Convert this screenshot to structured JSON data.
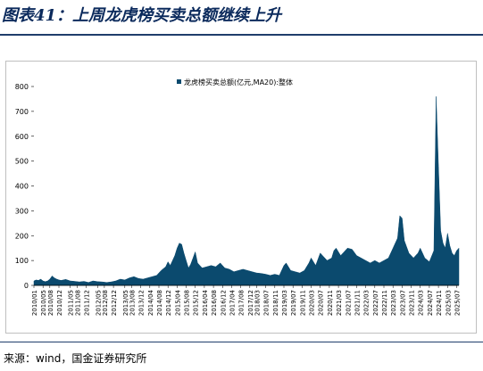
{
  "title": "图表41：上周龙虎榜买卖总额继续上升",
  "source": "来源：wind，国金证券研究所",
  "chart_data": {
    "type": "area",
    "legend": "龙虎榜买卖总额(亿元,MA20):整体",
    "legend_position": "top-center",
    "color": "#0b4a6e",
    "ylim": [
      0,
      800
    ],
    "yticks": [
      0,
      100,
      200,
      300,
      400,
      500,
      600,
      700,
      800
    ],
    "xticks": [
      "2010/01",
      "2010/05",
      "2010/08",
      "2010/12",
      "2011/05",
      "2011/08",
      "2011/12",
      "2012/05",
      "2012/08",
      "2012/12",
      "2013/05",
      "2013/08",
      "2013/12",
      "2014/04",
      "2014/08",
      "2014/12",
      "2015/04",
      "2015/08",
      "2015/12",
      "2016/04",
      "2016/08",
      "2016/12",
      "2017/04",
      "2017/08",
      "2017/12",
      "2018/03",
      "2018/07",
      "2018/11",
      "2019/03",
      "2019/07",
      "2019/11",
      "2020/03",
      "2020/07",
      "2020/11",
      "2021/03",
      "2021/07",
      "2021/11",
      "2022/03",
      "2022/07",
      "2022/11",
      "2023/03",
      "2023/07",
      "2023/11",
      "2024/03",
      "2024/07",
      "2024/11",
      "2025/03",
      "2025/07"
    ],
    "x_start": "2010/01",
    "x_end": "2025/08",
    "points": [
      [
        "2010/01",
        18
      ],
      [
        "2010/02",
        22
      ],
      [
        "2010/03",
        20
      ],
      [
        "2010/04",
        25
      ],
      [
        "2010/05",
        18
      ],
      [
        "2010/06",
        15
      ],
      [
        "2010/07",
        18
      ],
      [
        "2010/08",
        25
      ],
      [
        "2010/09",
        38
      ],
      [
        "2010/10",
        30
      ],
      [
        "2010/11",
        25
      ],
      [
        "2010/12",
        22
      ],
      [
        "2011/01",
        20
      ],
      [
        "2011/03",
        24
      ],
      [
        "2011/05",
        18
      ],
      [
        "2011/07",
        16
      ],
      [
        "2011/09",
        14
      ],
      [
        "2011/11",
        16
      ],
      [
        "2012/01",
        12
      ],
      [
        "2012/03",
        18
      ],
      [
        "2012/05",
        15
      ],
      [
        "2012/07",
        14
      ],
      [
        "2012/09",
        12
      ],
      [
        "2012/11",
        14
      ],
      [
        "2013/01",
        18
      ],
      [
        "2013/03",
        25
      ],
      [
        "2013/05",
        22
      ],
      [
        "2013/07",
        30
      ],
      [
        "2013/09",
        35
      ],
      [
        "2013/11",
        28
      ],
      [
        "2014/01",
        25
      ],
      [
        "2014/03",
        30
      ],
      [
        "2014/05",
        35
      ],
      [
        "2014/07",
        40
      ],
      [
        "2014/09",
        60
      ],
      [
        "2014/11",
        75
      ],
      [
        "2014/12",
        95
      ],
      [
        "2015/01",
        80
      ],
      [
        "2015/03",
        120
      ],
      [
        "2015/04",
        150
      ],
      [
        "2015/05",
        170
      ],
      [
        "2015/06",
        165
      ],
      [
        "2015/07",
        130
      ],
      [
        "2015/08",
        100
      ],
      [
        "2015/09",
        70
      ],
      [
        "2015/10",
        85
      ],
      [
        "2015/11",
        110
      ],
      [
        "2015/12",
        135
      ],
      [
        "2016/01",
        90
      ],
      [
        "2016/03",
        70
      ],
      [
        "2016/05",
        75
      ],
      [
        "2016/07",
        80
      ],
      [
        "2016/09",
        75
      ],
      [
        "2016/11",
        90
      ],
      [
        "2017/01",
        70
      ],
      [
        "2017/03",
        65
      ],
      [
        "2017/05",
        55
      ],
      [
        "2017/07",
        60
      ],
      [
        "2017/09",
        65
      ],
      [
        "2017/11",
        60
      ],
      [
        "2018/01",
        55
      ],
      [
        "2018/03",
        50
      ],
      [
        "2018/05",
        48
      ],
      [
        "2018/07",
        45
      ],
      [
        "2018/09",
        40
      ],
      [
        "2018/11",
        45
      ],
      [
        "2019/01",
        40
      ],
      [
        "2019/03",
        80
      ],
      [
        "2019/04",
        90
      ],
      [
        "2019/06",
        60
      ],
      [
        "2019/08",
        55
      ],
      [
        "2019/10",
        50
      ],
      [
        "2019/12",
        60
      ],
      [
        "2020/02",
        90
      ],
      [
        "2020/03",
        110
      ],
      [
        "2020/05",
        80
      ],
      [
        "2020/07",
        130
      ],
      [
        "2020/08",
        120
      ],
      [
        "2020/10",
        100
      ],
      [
        "2020/12",
        110
      ],
      [
        "2021/01",
        140
      ],
      [
        "2021/02",
        150
      ],
      [
        "2021/04",
        120
      ],
      [
        "2021/06",
        140
      ],
      [
        "2021/07",
        150
      ],
      [
        "2021/09",
        145
      ],
      [
        "2021/11",
        120
      ],
      [
        "2022/01",
        110
      ],
      [
        "2022/03",
        100
      ],
      [
        "2022/05",
        90
      ],
      [
        "2022/07",
        100
      ],
      [
        "2022/09",
        90
      ],
      [
        "2022/11",
        100
      ],
      [
        "2023/01",
        110
      ],
      [
        "2023/03",
        150
      ],
      [
        "2023/05",
        190
      ],
      [
        "2023/06",
        280
      ],
      [
        "2023/07",
        270
      ],
      [
        "2023/08",
        180
      ],
      [
        "2023/10",
        130
      ],
      [
        "2023/12",
        110
      ],
      [
        "2024/02",
        130
      ],
      [
        "2024/03",
        150
      ],
      [
        "2024/05",
        110
      ],
      [
        "2024/07",
        95
      ],
      [
        "2024/09",
        140
      ],
      [
        "2024/10",
        760
      ],
      [
        "2024/11",
        480
      ],
      [
        "2024/12",
        220
      ],
      [
        "2025/01",
        170
      ],
      [
        "2025/02",
        150
      ],
      [
        "2025/03",
        210
      ],
      [
        "2025/04",
        160
      ],
      [
        "2025/05",
        130
      ],
      [
        "2025/06",
        120
      ],
      [
        "2025/07",
        140
      ],
      [
        "2025/08",
        150
      ]
    ]
  }
}
